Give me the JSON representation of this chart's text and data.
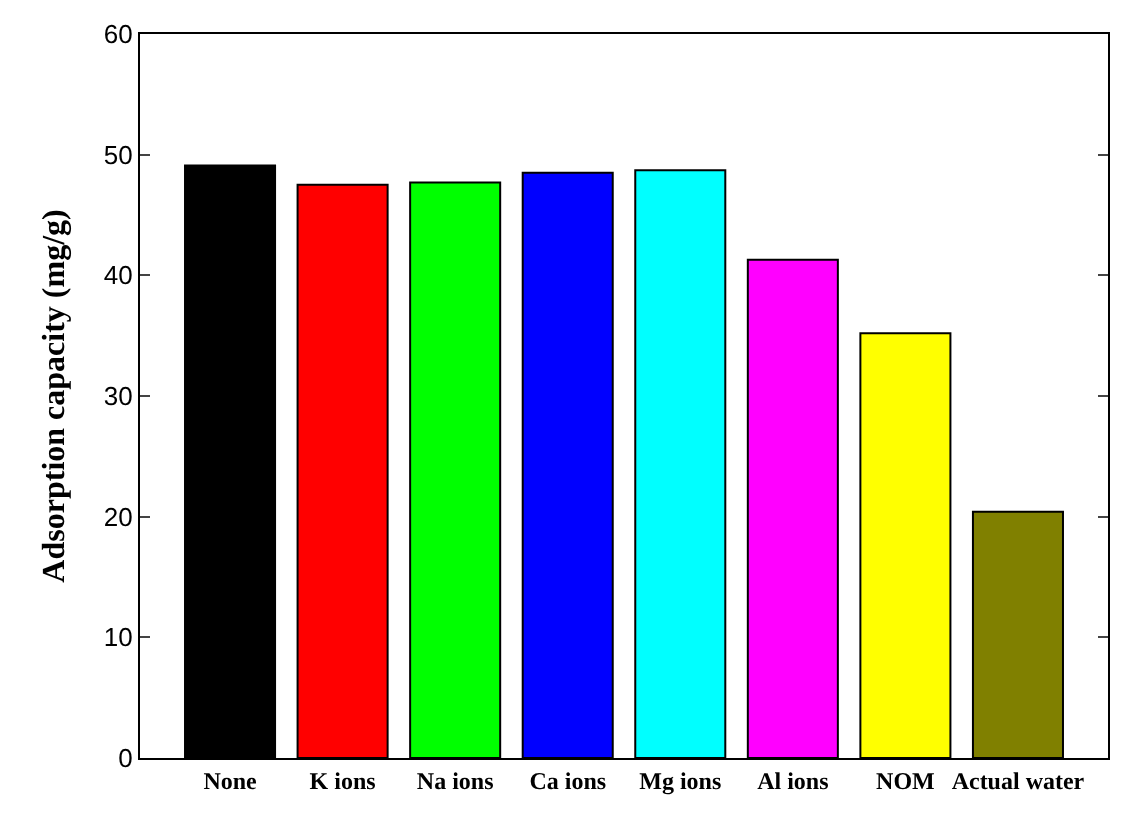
{
  "chart_data": {
    "type": "bar",
    "ylabel": "Adsorption capacity (mg/g)",
    "categories": [
      "None",
      "K ions",
      "Na ions",
      "Ca ions",
      "Mg ions",
      "Al ions",
      "NOM",
      "Actual water"
    ],
    "values": [
      49.1,
      47.5,
      47.7,
      48.5,
      48.7,
      41.3,
      35.2,
      20.4
    ],
    "colors": [
      "#000000",
      "#ff0000",
      "#00ff00",
      "#0000ff",
      "#00ffff",
      "#ff00ff",
      "#ffff00",
      "#808000"
    ],
    "ylim": [
      0,
      60
    ],
    "yticks": [
      0,
      10,
      20,
      30,
      40,
      50,
      60
    ],
    "legend": false
  }
}
